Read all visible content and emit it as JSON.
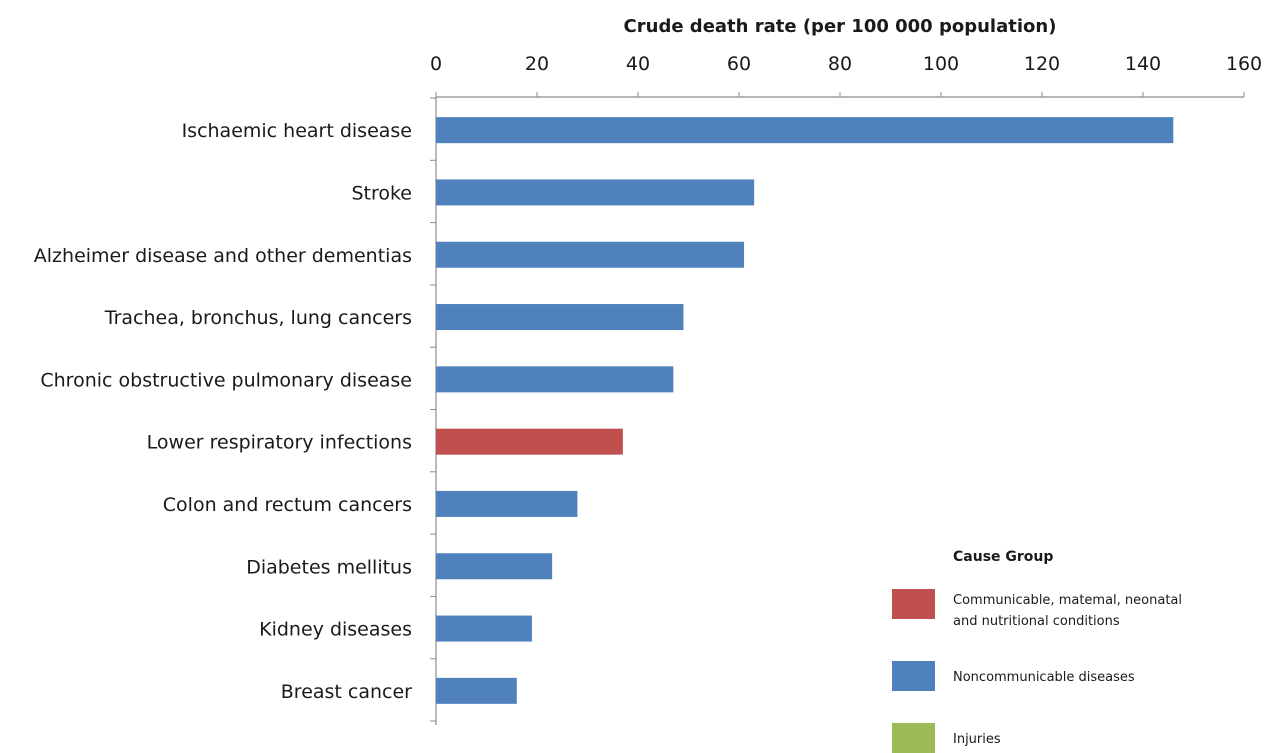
{
  "chart_data": {
    "type": "bar",
    "orientation": "horizontal",
    "title": "",
    "xlabel": "Crude death rate (per 100 000 population)",
    "ylabel": "",
    "xlim": [
      0,
      160
    ],
    "x_ticks": [
      0,
      20,
      40,
      60,
      80,
      100,
      120,
      140,
      160
    ],
    "x_axis_position": "top",
    "grid": false,
    "categories": [
      "Ischaemic heart disease",
      "Stroke",
      "Alzheimer disease and other dementias",
      "Trachea, bronchus, lung cancers",
      "Chronic obstructive pulmonary disease",
      "Lower respiratory infections",
      "Colon and rectum cancers",
      "Diabetes mellitus",
      "Kidney diseases",
      "Breast cancer"
    ],
    "values": [
      146,
      63,
      61,
      49,
      47,
      37,
      28,
      23,
      19,
      16
    ],
    "groups": [
      "Noncommunicable diseases",
      "Noncommunicable diseases",
      "Noncommunicable diseases",
      "Noncommunicable diseases",
      "Noncommunicable diseases",
      "Communicable, maternal, neonatal and nutritional conditions",
      "Noncommunicable diseases",
      "Noncommunicable diseases",
      "Noncommunicable diseases",
      "Noncommunicable diseases"
    ],
    "legend": {
      "title": "Cause Group",
      "position": "bottom-right",
      "entries": [
        {
          "label_lines": [
            "Communicable, matemal, neonatal",
            "and nutritional conditions"
          ],
          "color": "#c0504d"
        },
        {
          "label_lines": [
            "Noncommunicable diseases"
          ],
          "color": "#4f81bd"
        },
        {
          "label_lines": [
            "Injuries"
          ],
          "color": "#9bbb59"
        }
      ]
    },
    "colors": {
      "Noncommunicable diseases": "#4f81bd",
      "Communicable, maternal, neonatal and nutritional conditions": "#c0504d",
      "Injuries": "#9bbb59"
    }
  }
}
